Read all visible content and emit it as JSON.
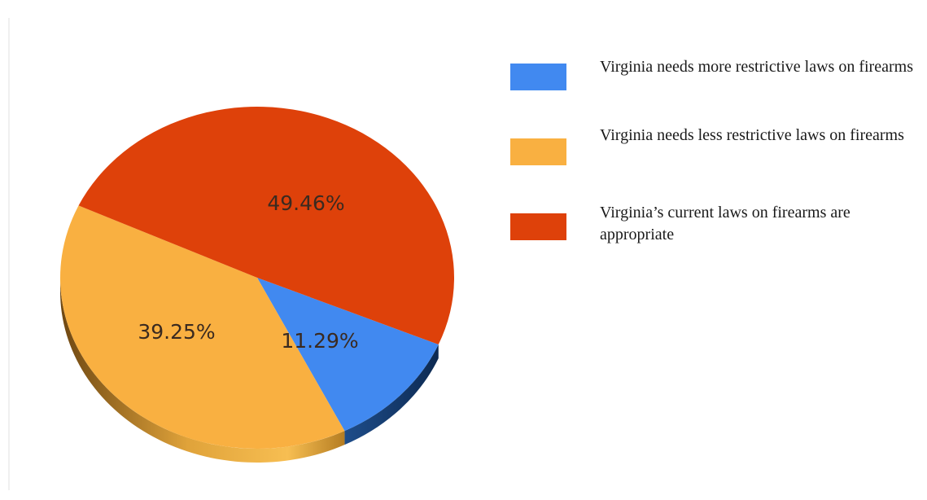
{
  "chart_data": {
    "type": "pie",
    "title": "",
    "slices": [
      {
        "label": "Virginia needs more restrictive laws on firearms",
        "value": 11.29,
        "value_label": "11.29%",
        "color": "#4189F0"
      },
      {
        "label": "Virginia needs less restrictive laws on firearms",
        "value": 39.25,
        "value_label": "39.25%",
        "color": "#F9B041"
      },
      {
        "label": "Virginia’s current laws on firearms are appropriate",
        "value": 49.46,
        "value_label": "49.46%",
        "color": "#DE410A"
      }
    ],
    "legend_position": "right",
    "style": "3d"
  }
}
